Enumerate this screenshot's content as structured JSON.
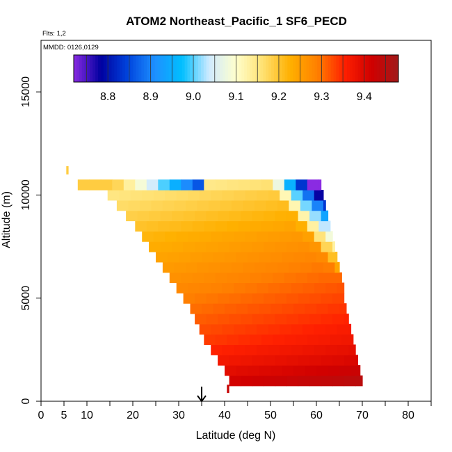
{
  "chart_data": {
    "type": "heatmap",
    "title": "ATOM2 Northeast_Pacific_1 SF6_PECD",
    "flights_note": "Flts: 1,2",
    "date_note": "MMDD: 0126,0129",
    "xlabel": "Latitude (deg N)",
    "ylabel": "Altitude (m)",
    "xlim": [
      0,
      85
    ],
    "ylim": [
      0,
      17500
    ],
    "xticks": [
      0,
      5,
      10,
      20,
      30,
      40,
      50,
      60,
      70,
      80
    ],
    "xtick_minor": [
      15,
      25,
      35,
      45,
      55,
      65,
      75,
      85
    ],
    "yticks": [
      0,
      5000,
      10000,
      15000
    ],
    "grid": false,
    "marker_latitude": 35,
    "colorbar": {
      "range": [
        8.72,
        9.48
      ],
      "ticks": [
        8.8,
        8.9,
        9.0,
        9.1,
        9.2,
        9.3,
        9.4
      ],
      "tick_labels": [
        "8.8",
        "8.9",
        "9.0",
        "9.1",
        "9.2",
        "9.3",
        "9.4"
      ],
      "colors": [
        "#8a2be2",
        "#0000a0",
        "#0044dd",
        "#1e90ff",
        "#00bfff",
        "#cfeaff",
        "#ffffcc",
        "#ffe070",
        "#ffb000",
        "#ff8000",
        "#ff2000",
        "#d00000",
        "#a01a1a"
      ]
    },
    "edge": {
      "altitude": [
        1000,
        1500,
        2000,
        2500,
        3000,
        3500,
        4000,
        4500,
        5000,
        5500,
        6000,
        6500,
        7000,
        7500,
        8000,
        8500,
        9000,
        9500,
        10000,
        10500
      ],
      "lat_start": [
        41,
        40,
        38.5,
        37,
        35.5,
        34.5,
        33.5,
        32.5,
        31,
        29.5,
        28,
        26.5,
        25,
        23.5,
        22,
        20.5,
        18.5,
        16.5,
        14.5,
        8
      ],
      "lat_end": [
        70,
        69.5,
        69,
        68.5,
        68,
        67.5,
        67,
        66.5,
        66,
        66,
        65.5,
        65,
        64.5,
        64,
        63.5,
        63,
        62.5,
        62,
        61.5,
        61
      ]
    }
  }
}
